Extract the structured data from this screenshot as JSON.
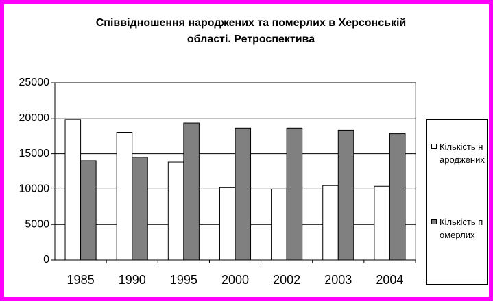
{
  "chart_data": {
    "type": "bar",
    "title": "Співвідношення народжених та померлих в Херсонській області. Ретроспектива",
    "categories": [
      "1985",
      "1990",
      "1995",
      "2000",
      "2002",
      "2003",
      "2004"
    ],
    "series": [
      {
        "name": "Кількість народжених",
        "color": "#ffffff",
        "values": [
          19800,
          18000,
          13800,
          10200,
          10000,
          10500,
          10400
        ]
      },
      {
        "name": "Кількість померлих",
        "color": "#808080",
        "values": [
          14000,
          14500,
          19300,
          18600,
          18600,
          18300,
          17800
        ]
      }
    ],
    "ylim": [
      0,
      25000
    ],
    "yticks": [
      0,
      5000,
      10000,
      15000,
      20000,
      25000
    ],
    "grid": true,
    "legend": "right"
  }
}
